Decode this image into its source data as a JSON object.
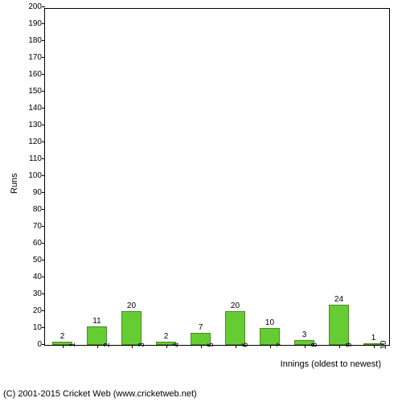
{
  "chart": {
    "type": "bar",
    "ylabel": "Runs",
    "xlabel": "Innings (oldest to newest)",
    "ylim": [
      0,
      200
    ],
    "ytick_step": 10,
    "categories": [
      "1",
      "2",
      "3",
      "4",
      "5",
      "6",
      "7",
      "8",
      "9",
      "10"
    ],
    "values": [
      2,
      11,
      20,
      2,
      7,
      20,
      10,
      3,
      24,
      1
    ],
    "bar_color": "#66cc33",
    "bar_border_color": "#4a8a1f",
    "bar_width_ratio": 0.6,
    "background_color": "#ffffff",
    "axis_color": "#000000",
    "label_fontsize": 11,
    "tick_fontsize": 10,
    "value_label_fontsize": 10
  },
  "copyright": "(C) 2001-2015 Cricket Web (www.cricketweb.net)"
}
